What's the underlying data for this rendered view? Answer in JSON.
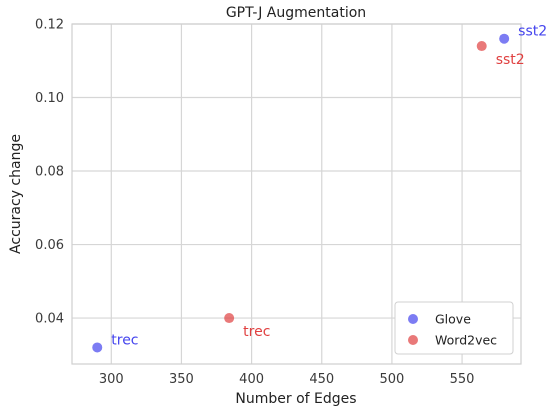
{
  "chart_data": {
    "type": "scatter",
    "title": "GPT-J Augmentation",
    "xlabel": "Number of Edges",
    "ylabel": "Accuracy change",
    "xlim": [
      272,
      592
    ],
    "ylim": [
      0.0275,
      0.12
    ],
    "xticks": [
      300,
      350,
      400,
      450,
      500,
      550
    ],
    "yticks": [
      0.04,
      0.06,
      0.08,
      0.1,
      0.12
    ],
    "ytick_labels": [
      "0.04",
      "0.06",
      "0.08",
      "0.10",
      "0.12"
    ],
    "grid": true,
    "legend_position": "bottom-right",
    "series": [
      {
        "name": "Glove",
        "color": "#4444ee",
        "points": [
          {
            "x": 290,
            "y": 0.032,
            "label": "trec"
          },
          {
            "x": 580,
            "y": 0.116,
            "label": "sst2"
          }
        ]
      },
      {
        "name": "Word2vec",
        "color": "#e04040",
        "points": [
          {
            "x": 384,
            "y": 0.04,
            "label": "trec"
          },
          {
            "x": 564,
            "y": 0.114,
            "label": "sst2"
          }
        ]
      }
    ]
  }
}
